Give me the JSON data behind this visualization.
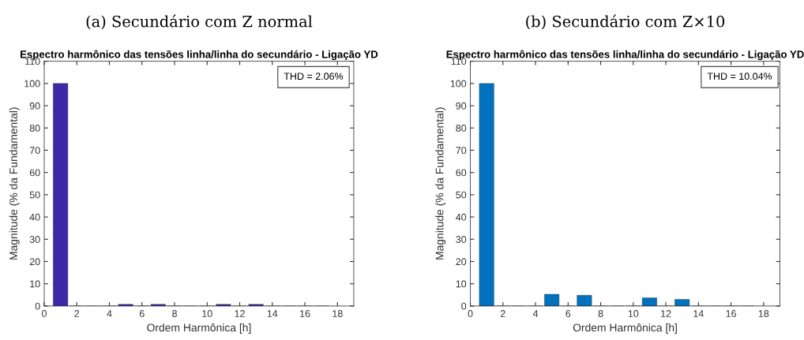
{
  "chart_data": [
    {
      "type": "bar",
      "title": "(a) Secundário com Z normal",
      "subtitle": "Espectro harmônico das tensões linha/linha do secundário - Ligação YD",
      "xlabel": "Ordem Harmônica [h]",
      "ylabel": "Magnitude (% da Fundamental)",
      "annotations": [
        "THD = 2.06%"
      ],
      "x": [
        1,
        2,
        3,
        4,
        5,
        6,
        7,
        8,
        9,
        10,
        11,
        12,
        13,
        14,
        15,
        16,
        17
      ],
      "values": [
        100,
        0,
        0,
        0,
        0.8,
        0,
        0.8,
        0,
        0,
        0,
        0.8,
        0,
        0.8,
        0,
        0,
        0,
        0
      ],
      "color": "#3c28a8",
      "xlim": [
        0,
        19
      ],
      "xticks": [
        0,
        2,
        4,
        6,
        8,
        10,
        12,
        14,
        16,
        18
      ],
      "ylim": [
        0,
        110
      ],
      "yticks": [
        0,
        10,
        20,
        30,
        40,
        50,
        60,
        70,
        80,
        90,
        100,
        110
      ],
      "grid": false,
      "legend": false
    },
    {
      "type": "bar",
      "title": "(b) Secundário com Z×10",
      "subtitle": "Espectro harmônico das tensões linha/linha do secundário - Ligação YD",
      "xlabel": "Ordem Harmônica [h]",
      "ylabel": "Magnitude (% da Fundamental)",
      "annotations": [
        "THD = 10.04%"
      ],
      "x": [
        1,
        2,
        3,
        4,
        5,
        6,
        7,
        8,
        9,
        10,
        11,
        12,
        13,
        14,
        15,
        16,
        17
      ],
      "values": [
        100,
        0,
        0,
        0,
        5.3,
        0,
        4.8,
        0,
        0,
        0,
        3.7,
        0,
        3.0,
        0,
        0,
        0,
        0
      ],
      "color": "#0072bd",
      "xlim": [
        0,
        19
      ],
      "xticks": [
        0,
        2,
        4,
        6,
        8,
        10,
        12,
        14,
        16,
        18
      ],
      "ylim": [
        0,
        110
      ],
      "yticks": [
        0,
        10,
        20,
        30,
        40,
        50,
        60,
        70,
        80,
        90,
        100,
        110
      ],
      "grid": false,
      "legend": false
    }
  ]
}
